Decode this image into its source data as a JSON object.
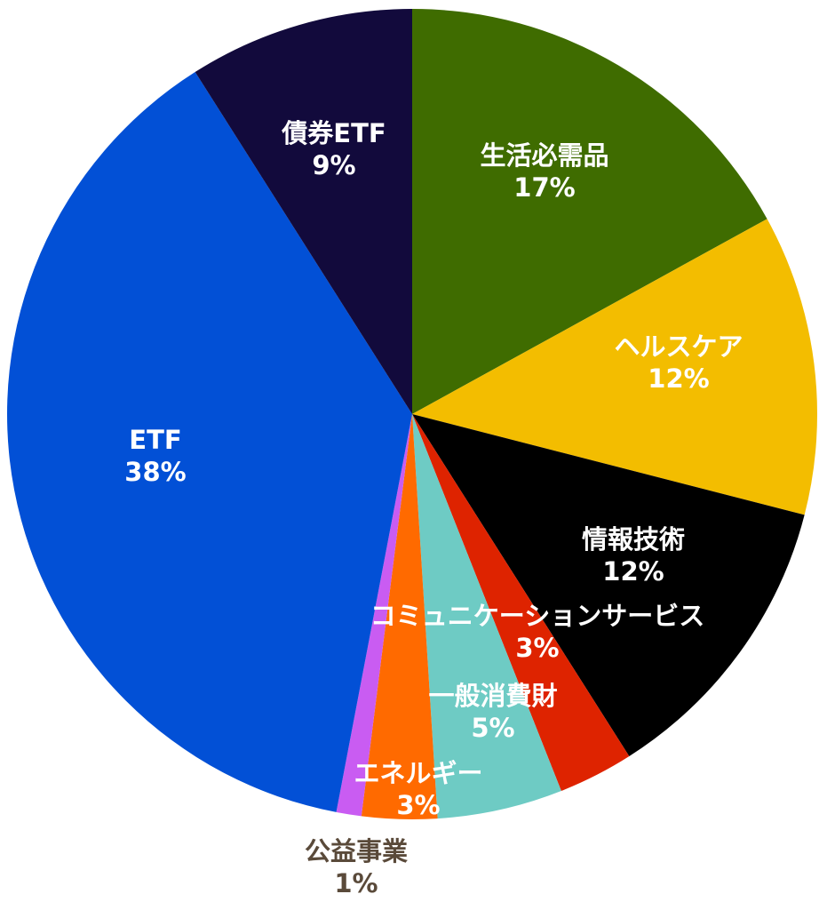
{
  "chart_data": {
    "type": "pie",
    "title": "",
    "slices": [
      {
        "label": "生活必需品",
        "percent_label": "17%",
        "value": 17,
        "color": "#3f6c00",
        "text_color": "#ffffff"
      },
      {
        "label": "ヘルスケア",
        "percent_label": "12%",
        "value": 12,
        "color": "#f3bd00",
        "text_color": "#ffffff"
      },
      {
        "label": "情報技術",
        "percent_label": "12%",
        "value": 12,
        "color": "#000000",
        "text_color": "#ffffff"
      },
      {
        "label": "コミュニケーションサービス",
        "percent_label": "3%",
        "value": 3,
        "color": "#de2300",
        "text_color": "#ffffff"
      },
      {
        "label": "一般消費財",
        "percent_label": "5%",
        "value": 5,
        "color": "#6ecbc4",
        "text_color": "#ffffff"
      },
      {
        "label": "エネルギー",
        "percent_label": "3%",
        "value": 3,
        "color": "#ff6a00",
        "text_color": "#ffffff"
      },
      {
        "label": "公益事業",
        "percent_label": "1%",
        "value": 1,
        "color": "#c95cf2",
        "text_color": "#5a4a3a"
      },
      {
        "label": "ETF",
        "percent_label": "38%",
        "value": 38,
        "color": "#0250d6",
        "text_color": "#ffffff"
      },
      {
        "label": "債券ETF",
        "percent_label": "9%",
        "value": 9,
        "color": "#120a3c",
        "text_color": "#ffffff"
      }
    ],
    "start_angle_deg": 0,
    "direction": "clockwise",
    "legend": "none"
  }
}
